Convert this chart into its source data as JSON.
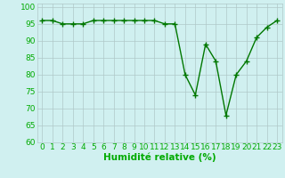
{
  "x": [
    0,
    1,
    2,
    3,
    4,
    5,
    6,
    7,
    8,
    9,
    10,
    11,
    12,
    13,
    14,
    15,
    16,
    17,
    18,
    19,
    20,
    21,
    22,
    23
  ],
  "y": [
    96,
    96,
    95,
    95,
    95,
    96,
    96,
    96,
    96,
    96,
    96,
    96,
    95,
    95,
    80,
    74,
    89,
    84,
    68,
    80,
    84,
    91,
    94,
    96
  ],
  "xlabel": "Humidité relative (%)",
  "ylim": [
    60,
    101
  ],
  "yticks": [
    60,
    65,
    70,
    75,
    80,
    85,
    90,
    95,
    100
  ],
  "xticks": [
    0,
    1,
    2,
    3,
    4,
    5,
    6,
    7,
    8,
    9,
    10,
    11,
    12,
    13,
    14,
    15,
    16,
    17,
    18,
    19,
    20,
    21,
    22,
    23
  ],
  "line_color": "#007700",
  "marker": "+",
  "bg_color": "#d0f0f0",
  "grid_color": "#b0c8c8",
  "xlabel_color": "#00aa00",
  "xlabel_fontsize": 7.5,
  "tick_fontsize": 6.5,
  "tick_color": "#00aa00"
}
